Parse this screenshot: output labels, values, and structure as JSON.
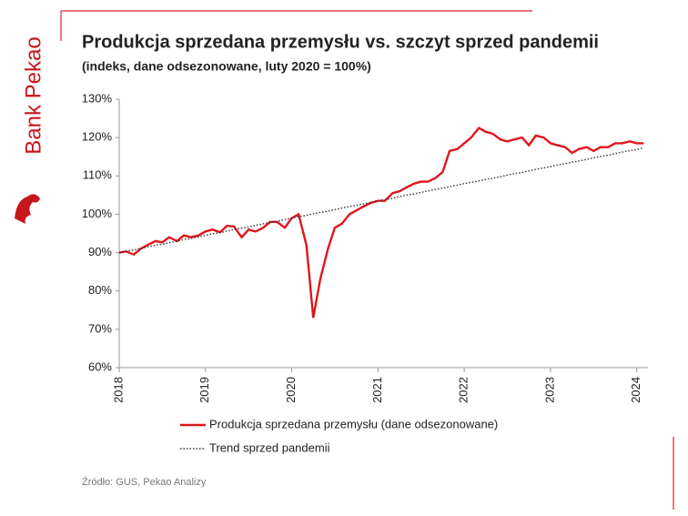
{
  "logo_text": "Bank Pekao",
  "chart_data": {
    "type": "line",
    "title": "Produkcja sprzedana przemysłu vs. szczyt sprzed pandemii",
    "subtitle": "(indeks, dane odsezonowane, luty 2020 = 100%)",
    "source": "Źródło: GUS, Pekao Analizy",
    "x": [
      2018,
      2018.08,
      2018.17,
      2018.25,
      2018.33,
      2018.42,
      2018.5,
      2018.58,
      2018.67,
      2018.75,
      2018.83,
      2018.92,
      2019,
      2019.08,
      2019.17,
      2019.25,
      2019.33,
      2019.42,
      2019.5,
      2019.58,
      2019.67,
      2019.75,
      2019.83,
      2019.92,
      2020,
      2020.08,
      2020.17,
      2020.25,
      2020.33,
      2020.42,
      2020.5,
      2020.58,
      2020.67,
      2020.75,
      2020.83,
      2020.92,
      2021,
      2021.08,
      2021.17,
      2021.25,
      2021.33,
      2021.42,
      2021.5,
      2021.58,
      2021.67,
      2021.75,
      2021.83,
      2021.92,
      2022,
      2022.08,
      2022.17,
      2022.25,
      2022.33,
      2022.42,
      2022.5,
      2022.58,
      2022.67,
      2022.75,
      2022.83,
      2022.92,
      2023,
      2023.08,
      2023.17,
      2023.25,
      2023.33,
      2023.42,
      2023.5,
      2023.58,
      2023.67,
      2023.75,
      2023.83,
      2023.92,
      2024,
      2024.08
    ],
    "series": [
      {
        "name": "Produkcja sprzedana przemysłu (dane odsezonowane)",
        "color": "#e0151b",
        "linestyle": "solid",
        "values": [
          90,
          90.3,
          89.5,
          91,
          92,
          93,
          92.7,
          94,
          93,
          94.5,
          94,
          94.5,
          95.5,
          96,
          95.3,
          97,
          96.8,
          94,
          96,
          95.5,
          96.5,
          98,
          98,
          96.5,
          99,
          100,
          92,
          73,
          83,
          91,
          96.5,
          97.5,
          100,
          101,
          102,
          103,
          103.5,
          103.5,
          105.5,
          106,
          107,
          108,
          108.5,
          108.5,
          109.5,
          111,
          116.5,
          117,
          118.5,
          120,
          122.5,
          121.5,
          121,
          119.5,
          119,
          119.5,
          120,
          118,
          120.5,
          120,
          118.5,
          118,
          117.5,
          116,
          117,
          117.5,
          116.5,
          117.5,
          117.5,
          118.5,
          118.5,
          119,
          118.5,
          118.5
        ]
      },
      {
        "name": "Trend sprzed pandemii",
        "color": "#333333",
        "linestyle": "dotted",
        "values": [
          90.0,
          90.4,
          90.7,
          91.1,
          91.5,
          91.9,
          92.2,
          92.6,
          93.0,
          93.4,
          93.7,
          94.1,
          94.5,
          94.9,
          95.2,
          95.6,
          96.0,
          96.4,
          96.7,
          97.1,
          97.5,
          97.9,
          98.2,
          98.6,
          99.0,
          99.4,
          99.7,
          100.1,
          100.5,
          100.8,
          101.2,
          101.6,
          102.0,
          102.3,
          102.7,
          103.1,
          103.5,
          103.8,
          104.2,
          104.6,
          105.0,
          105.3,
          105.7,
          106.1,
          106.5,
          106.8,
          107.2,
          107.6,
          108.0,
          108.3,
          108.7,
          109.1,
          109.4,
          109.8,
          110.2,
          110.6,
          110.9,
          111.3,
          111.7,
          112.1,
          112.4,
          112.8,
          113.2,
          113.6,
          113.9,
          114.3,
          114.7,
          115.1,
          115.4,
          115.8,
          116.2,
          116.6,
          116.9,
          117.3
        ]
      }
    ],
    "xlim": [
      2018,
      2024.13
    ],
    "xticks": [
      2018,
      2019,
      2020,
      2021,
      2022,
      2023,
      2024
    ],
    "ylim": [
      60,
      130
    ],
    "yticks": [
      {
        "value": 60,
        "label": "60%"
      },
      {
        "value": 70,
        "label": "70%"
      },
      {
        "value": 80,
        "label": "80%"
      },
      {
        "value": 90,
        "label": "90%"
      },
      {
        "value": 100,
        "label": "100%"
      },
      {
        "value": 110,
        "label": "110%"
      },
      {
        "value": 120,
        "label": "120%"
      },
      {
        "value": 130,
        "label": "130%"
      }
    ],
    "grid": false,
    "legend": "bottom"
  }
}
